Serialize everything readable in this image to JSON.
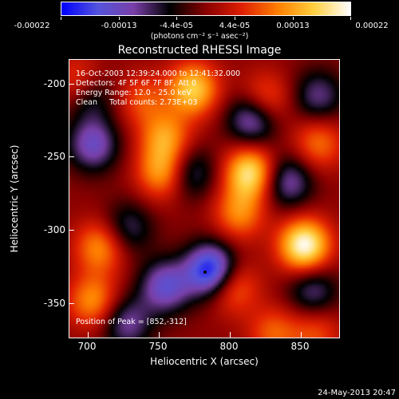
{
  "colorbar": {
    "tick_labels": [
      "-0.00022",
      "-0.00013",
      "-4.4e-05",
      "4.4e-05",
      "0.00013",
      "0.00022"
    ],
    "units": "(photons cm⁻² s⁻¹ asec⁻²)",
    "colors": [
      "#0000ff",
      "#5555dd",
      "#7a40a8",
      "#000000",
      "#8a0000",
      "#e02000",
      "#ff8000",
      "#ffd040",
      "#ffffff"
    ]
  },
  "title": "Reconstructed RHESSI Image",
  "annotations": {
    "time": "16-Oct-2003 12:39:24.000 to 12:41:32.000",
    "detectors": "Detectors: 4F 5F 6F 7F 8F, Att 0",
    "energy": "Energy Range: 12.0 - 25.0 keV",
    "clean": "Clean     Total counts: 2.73E+03",
    "peak": "Position of Peak = [852,-312]"
  },
  "chart_data": {
    "type": "heatmap",
    "title": "Reconstructed RHESSI Image",
    "xlabel": "Heliocentric X (arcsec)",
    "ylabel": "Heliocentric Y (arcsec)",
    "xlim": [
      683,
      877
    ],
    "ylim": [
      -375,
      -185
    ],
    "x_ticks": [
      "700",
      "750",
      "800",
      "850"
    ],
    "y_ticks": [
      "-200",
      "-250",
      "-300",
      "-350"
    ],
    "colorbar_range": [
      -0.00022,
      0.00022
    ],
    "peak_position": [
      852,
      -312
    ],
    "sources": [
      {
        "x": 852,
        "y": -312,
        "v": 1.0
      },
      {
        "x": 813,
        "y": -262,
        "v": 0.85
      },
      {
        "x": 772,
        "y": -205,
        "v": 0.75
      },
      {
        "x": 750,
        "y": -262,
        "v": 0.6
      },
      {
        "x": 705,
        "y": -313,
        "v": 0.55
      },
      {
        "x": 700,
        "y": -350,
        "v": 0.55
      },
      {
        "x": 800,
        "y": -340,
        "v": 0.5
      },
      {
        "x": 752,
        "y": -238,
        "v": 0.55
      },
      {
        "x": 823,
        "y": -213,
        "v": 0.5
      },
      {
        "x": 862,
        "y": -242,
        "v": 0.45
      },
      {
        "x": 805,
        "y": -290,
        "v": 0.5
      },
      {
        "x": 735,
        "y": -212,
        "v": 0.35
      },
      {
        "x": 690,
        "y": -200,
        "v": 0.4
      },
      {
        "x": 830,
        "y": -372,
        "v": 0.4
      },
      {
        "x": 860,
        "y": -372,
        "v": 0.35
      },
      {
        "x": 785,
        "y": -329,
        "v": -1.0
      },
      {
        "x": 815,
        "y": -225,
        "v": -0.7
      },
      {
        "x": 752,
        "y": -340,
        "v": -0.65
      },
      {
        "x": 700,
        "y": -243,
        "v": -0.6
      },
      {
        "x": 840,
        "y": -268,
        "v": -0.55
      },
      {
        "x": 724,
        "y": -365,
        "v": -0.5
      },
      {
        "x": 862,
        "y": -210,
        "v": -0.45
      },
      {
        "x": 770,
        "y": -262,
        "v": -0.45
      },
      {
        "x": 858,
        "y": -343,
        "v": -0.45
      },
      {
        "x": 725,
        "y": -300,
        "v": -0.4
      },
      {
        "x": 698,
        "y": -210,
        "v": -0.4
      }
    ]
  },
  "footer": {
    "timestamp": "24-May-2013 20:47"
  }
}
